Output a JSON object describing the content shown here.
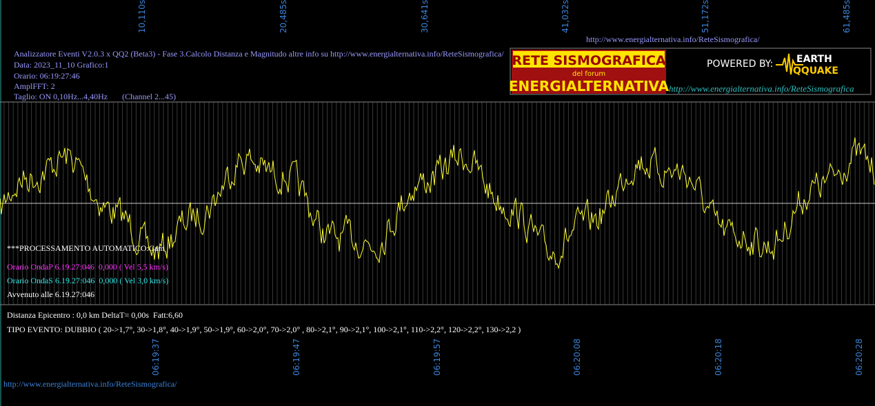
{
  "top_time_labels": [
    "10,110s",
    "20,485s",
    "30,641s",
    "41,032s",
    "51,172s",
    "61,485s"
  ],
  "bottom_time_labels": [
    "06:19:37",
    "06:19:47",
    "06:19:57",
    "06:20:08",
    "06:20:18",
    "06:20:28"
  ],
  "header": {
    "url": "http://www.energialternativa.info/ReteSismografica/",
    "lines": [
      "Analizzatore Eventi V2.0.3 x QQ2 (Beta3) - Fase 3.Calcolo Distanza e Magnitudo altre info su http://www.energialternativa.info/ReteSismografica/",
      "Data: 2023_11_10 Grafico:1",
      "Orario: 06:19:27:46",
      "AmplFFT: 2",
      "Taglio: ON 0,10Hz...4,40Hz       (Channel 2...45)"
    ]
  },
  "logo": {
    "title": "RETE SISMOGRAFICA",
    "forum": "del forum",
    "name": "ENERGIALTERNATIVA",
    "powered": "POWERED BY:",
    "earth": "EARTH",
    "quake": "QQUAKE",
    "url": "http://www.energialternativa.info/ReteSismografica"
  },
  "processing": {
    "mode": "***PROCESSAMENTO AUTOMATICO:Cam",
    "onda_p": "Orario OndaP 6.19.27:046  0,000 ( Vel 5,5 km/s)",
    "onda_s": "Orario OndaS 6.19.27:046  0,000 ( Vel 3,0 km/s)",
    "avvenuto": "Avvenuto alle 6.19.27:046",
    "distanza": "Distanza Epicentro : 0,0 km DeltaT= 0,00s  Fatt:6,60",
    "tipo": "TIPO EVENTO: DUBBIO ( 20->1,7°, 30->1,8°, 40->1,9°, 50->1,9°, 60->2,0°, 70->2,0° , 80->2,1°, 90->2,1°, 100->2,1°, 110->2,2°, 120->2,2°, 130->2,2 )"
  },
  "footer_url": "http://www.energialternativa.info/ReteSismografica/"
}
